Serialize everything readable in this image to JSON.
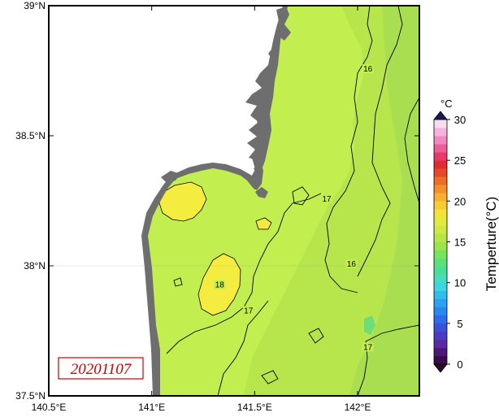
{
  "map": {
    "date_stamp": "20201107",
    "x_ticks": [
      {
        "value": 140.5,
        "label": "140.5°E"
      },
      {
        "value": 141.0,
        "label": "141°E"
      },
      {
        "value": 141.5,
        "label": "141.5°E"
      },
      {
        "value": 142.0,
        "label": "142°E"
      }
    ],
    "y_ticks": [
      {
        "value": 37.5,
        "label": "37.5°N"
      },
      {
        "value": 38.0,
        "label": "38°N"
      },
      {
        "value": 38.5,
        "label": "38.5°N"
      },
      {
        "value": 39.0,
        "label": "39°N"
      }
    ],
    "contour_labels": [
      {
        "text": "16",
        "lon": 142.05,
        "lat": 38.75
      },
      {
        "text": "17",
        "lon": 141.85,
        "lat": 38.25
      },
      {
        "text": "16",
        "lon": 141.97,
        "lat": 38.0
      },
      {
        "text": "18",
        "lon": 141.33,
        "lat": 37.92
      },
      {
        "text": "17",
        "lon": 141.47,
        "lat": 37.82
      },
      {
        "text": "17",
        "lon": 142.05,
        "lat": 37.68
      }
    ],
    "colors": {
      "land": "#ffffff",
      "coast": "#6e6e6e",
      "sea_16_17": "#c5f050",
      "sea_17_18": "#b4e84a",
      "sea_15_16": "#a8e050",
      "sea_warm": "#f7ee40",
      "sea_cool": "#6ddc7a"
    }
  },
  "colorbar": {
    "unit": "°C",
    "title": "Temperture(°C)",
    "min": 0,
    "max": 30,
    "tick_values": [
      0,
      5,
      10,
      15,
      20,
      25,
      30
    ],
    "tick_labels": [
      "0",
      "5",
      "10",
      "15",
      "20",
      "25",
      "30"
    ],
    "colors": [
      "#3a0a4a",
      "#4b1878",
      "#5a2aa0",
      "#4a3cc0",
      "#3c50d8",
      "#2f6ae8",
      "#2a86f0",
      "#2aa2f0",
      "#30bcec",
      "#3ed4e0",
      "#46dcc0",
      "#4ade9a",
      "#5ce07a",
      "#78e45c",
      "#9ae44c",
      "#b6e646",
      "#cdea44",
      "#e2ea40",
      "#f2e23a",
      "#f8cc34",
      "#f8b030",
      "#f4902c",
      "#ee6c2a",
      "#e84828",
      "#e02a34",
      "#e83a6a",
      "#ee5e96",
      "#f288c0",
      "#f6b4dc",
      "#fadcf0"
    ],
    "under_color": "#2a0a2a",
    "over_color": "#1a1a5a"
  }
}
